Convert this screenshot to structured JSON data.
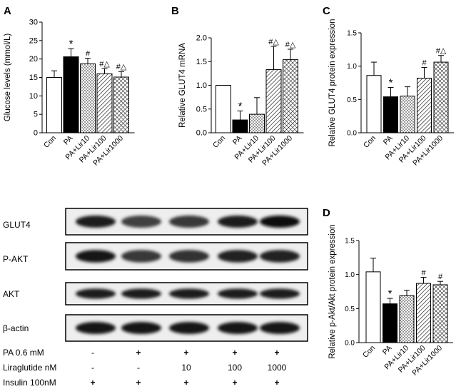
{
  "panel_letters": [
    "A",
    "B",
    "C",
    "D"
  ],
  "chart_data": [
    {
      "panel": "A",
      "type": "bar",
      "categories": [
        "Con",
        "PA",
        "PA+Lir10",
        "PA+Lir100",
        "PA+Lir1000"
      ],
      "values": [
        15.0,
        20.6,
        18.7,
        16.0,
        15.1
      ],
      "errors": [
        1.8,
        2.2,
        1.5,
        1.4,
        1.5
      ],
      "markers": [
        "",
        "*",
        "#",
        "#△",
        "#△"
      ],
      "ylabel": "Glucose levels (mmol/L)",
      "ylim": [
        0,
        30
      ],
      "yticks": [
        0,
        5,
        10,
        15,
        20,
        25,
        30
      ],
      "grid": false
    },
    {
      "panel": "B",
      "type": "bar",
      "categories": [
        "Con",
        "PA",
        "PA+Lir10",
        "PA+Lir100",
        "PA+Lir1000"
      ],
      "values": [
        1.0,
        0.27,
        0.39,
        1.33,
        1.54
      ],
      "errors": [
        0,
        0.19,
        0.35,
        0.49,
        0.22
      ],
      "markers": [
        "",
        "*",
        "",
        "#△",
        "#△"
      ],
      "ylabel": "Relative GLUT4 mRNA",
      "ylim": [
        0,
        2.0
      ],
      "yticks": [
        "0.0",
        "0.5",
        "1.0",
        "1.5",
        "2.0"
      ],
      "grid": false
    },
    {
      "panel": "C",
      "type": "bar",
      "categories": [
        "Con",
        "PA",
        "PA+Lir10",
        "PA+Lir100",
        "PA+Lir1000"
      ],
      "values": [
        0.86,
        0.54,
        0.55,
        0.82,
        1.06
      ],
      "errors": [
        0.2,
        0.14,
        0.14,
        0.16,
        0.1
      ],
      "markers": [
        "",
        "*",
        "",
        "#",
        "#△"
      ],
      "ylabel": "Relative GLUT4 protein expression",
      "ylim": [
        0,
        1.5
      ],
      "yticks": [
        "0.0",
        "0.5",
        "1.0",
        "1.5"
      ],
      "grid": false
    },
    {
      "panel": "D",
      "type": "bar",
      "categories": [
        "Con",
        "PA",
        "PA+Lir10",
        "PA+Lir100",
        "PA+Lir1000"
      ],
      "values": [
        1.04,
        0.57,
        0.69,
        0.87,
        0.85
      ],
      "errors": [
        0.2,
        0.08,
        0.08,
        0.09,
        0.05
      ],
      "markers": [
        "",
        "*",
        "",
        "#",
        "#"
      ],
      "ylabel": "Relative p-Akt/Akt protein expression",
      "ylim": [
        0,
        1.5
      ],
      "yticks": [
        "0.0",
        "0.5",
        "1.0",
        "1.5"
      ],
      "grid": false
    }
  ],
  "bar_styles": [
    "white",
    "black",
    "dots",
    "diagonal",
    "crosshatch"
  ],
  "blot": {
    "rows": [
      {
        "label": "GLUT4",
        "intensity": [
          0.8,
          0.55,
          0.6,
          0.8,
          0.9
        ]
      },
      {
        "label": "P-AKT",
        "intensity": [
          0.85,
          0.6,
          0.65,
          0.75,
          0.75
        ]
      },
      {
        "label": "AKT",
        "intensity": [
          0.8,
          0.8,
          0.8,
          0.8,
          0.8
        ]
      },
      {
        "label": "β-actin",
        "intensity": [
          0.85,
          0.85,
          0.85,
          0.85,
          0.85
        ]
      }
    ],
    "conditions": [
      {
        "label": "PA 0.6 mM",
        "values": [
          "-",
          "+",
          "+",
          "+",
          "+"
        ]
      },
      {
        "label": "Liraglutide nM",
        "values": [
          "-",
          "-",
          "10",
          "100",
          "1000"
        ]
      },
      {
        "label": "Insulin 100nM",
        "values": [
          "+",
          "+",
          "+",
          "+",
          "+"
        ]
      }
    ]
  }
}
